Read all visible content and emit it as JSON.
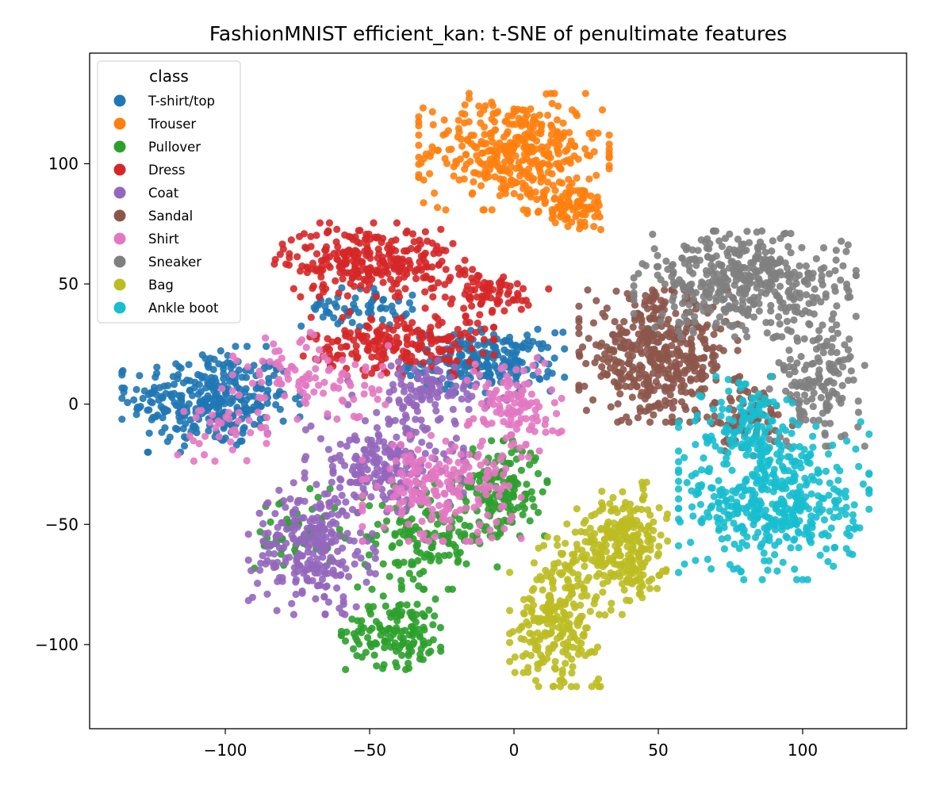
{
  "chart_data": {
    "type": "scatter",
    "title": "FashionMNIST efficient_kan: t-SNE of penultimate features",
    "xlabel": "",
    "ylabel": "",
    "xlim": [
      -147,
      136
    ],
    "ylim": [
      -135,
      146
    ],
    "x_ticks": [
      -100,
      -50,
      0,
      50,
      100
    ],
    "y_ticks": [
      -100,
      -50,
      0,
      50,
      100
    ],
    "x_tick_labels": [
      "−100",
      "−50",
      "0",
      "50",
      "100"
    ],
    "y_tick_labels": [
      "−100",
      "−50",
      "0",
      "50",
      "100"
    ],
    "grid": false,
    "legend": {
      "title": "class",
      "placement": "top-left"
    },
    "series": [
      {
        "name": "T-shirt/top",
        "color": "#1f77b4",
        "clusters": [
          {
            "cx": -105,
            "cy": 2,
            "rx": 28,
            "ry": 20,
            "n": 320
          },
          {
            "cx": -10,
            "cy": 18,
            "rx": 25,
            "ry": 12,
            "n": 220
          },
          {
            "cx": -55,
            "cy": 40,
            "rx": 18,
            "ry": 8,
            "n": 60
          }
        ]
      },
      {
        "name": "Trouser",
        "color": "#ff7f0e",
        "clusters": [
          {
            "cx": 0,
            "cy": 105,
            "rx": 30,
            "ry": 22,
            "n": 380
          },
          {
            "cx": 20,
            "cy": 82,
            "rx": 14,
            "ry": 10,
            "n": 90
          }
        ]
      },
      {
        "name": "Pullover",
        "color": "#2ca02c",
        "clusters": [
          {
            "cx": -40,
            "cy": -95,
            "rx": 18,
            "ry": 14,
            "n": 140
          },
          {
            "cx": -30,
            "cy": -55,
            "rx": 22,
            "ry": 20,
            "n": 150
          },
          {
            "cx": -5,
            "cy": -35,
            "rx": 15,
            "ry": 18,
            "n": 160
          },
          {
            "cx": -75,
            "cy": -55,
            "rx": 15,
            "ry": 18,
            "n": 60
          }
        ]
      },
      {
        "name": "Dress",
        "color": "#d62728",
        "clusters": [
          {
            "cx": -50,
            "cy": 60,
            "rx": 30,
            "ry": 14,
            "n": 280
          },
          {
            "cx": -40,
            "cy": 25,
            "rx": 30,
            "ry": 12,
            "n": 200
          },
          {
            "cx": -10,
            "cy": 45,
            "rx": 20,
            "ry": 10,
            "n": 80
          }
        ]
      },
      {
        "name": "Coat",
        "color": "#9467bd",
        "clusters": [
          {
            "cx": -70,
            "cy": -60,
            "rx": 20,
            "ry": 25,
            "n": 250
          },
          {
            "cx": -45,
            "cy": -25,
            "rx": 25,
            "ry": 18,
            "n": 200
          },
          {
            "cx": -30,
            "cy": 5,
            "rx": 25,
            "ry": 12,
            "n": 100
          }
        ]
      },
      {
        "name": "Sandal",
        "color": "#8c564b",
        "clusters": [
          {
            "cx": 50,
            "cy": 20,
            "rx": 25,
            "ry": 25,
            "n": 450
          },
          {
            "cx": 80,
            "cy": -5,
            "rx": 15,
            "ry": 15,
            "n": 80
          }
        ]
      },
      {
        "name": "Shirt",
        "color": "#e377c2",
        "clusters": [
          {
            "cx": -25,
            "cy": -35,
            "rx": 25,
            "ry": 20,
            "n": 200
          },
          {
            "cx": 0,
            "cy": 0,
            "rx": 15,
            "ry": 20,
            "n": 120
          },
          {
            "cx": -70,
            "cy": 10,
            "rx": 25,
            "ry": 18,
            "n": 100
          },
          {
            "cx": -100,
            "cy": -10,
            "rx": 15,
            "ry": 15,
            "n": 40
          }
        ]
      },
      {
        "name": "Sneaker",
        "color": "#7f7f7f",
        "clusters": [
          {
            "cx": 80,
            "cy": 50,
            "rx": 35,
            "ry": 20,
            "n": 420
          },
          {
            "cx": 105,
            "cy": 10,
            "rx": 15,
            "ry": 25,
            "n": 150
          }
        ]
      },
      {
        "name": "Bag",
        "color": "#bcbd22",
        "clusters": [
          {
            "cx": 15,
            "cy": -90,
            "rx": 15,
            "ry": 25,
            "n": 230
          },
          {
            "cx": 40,
            "cy": -60,
            "rx": 12,
            "ry": 25,
            "n": 200
          },
          {
            "cx": 25,
            "cy": -60,
            "rx": 15,
            "ry": 15,
            "n": 80
          }
        ]
      },
      {
        "name": "Ankle boot",
        "color": "#17becf",
        "clusters": [
          {
            "cx": 90,
            "cy": -40,
            "rx": 30,
            "ry": 30,
            "n": 450
          },
          {
            "cx": 80,
            "cy": -5,
            "rx": 15,
            "ry": 15,
            "n": 100
          }
        ]
      }
    ]
  }
}
